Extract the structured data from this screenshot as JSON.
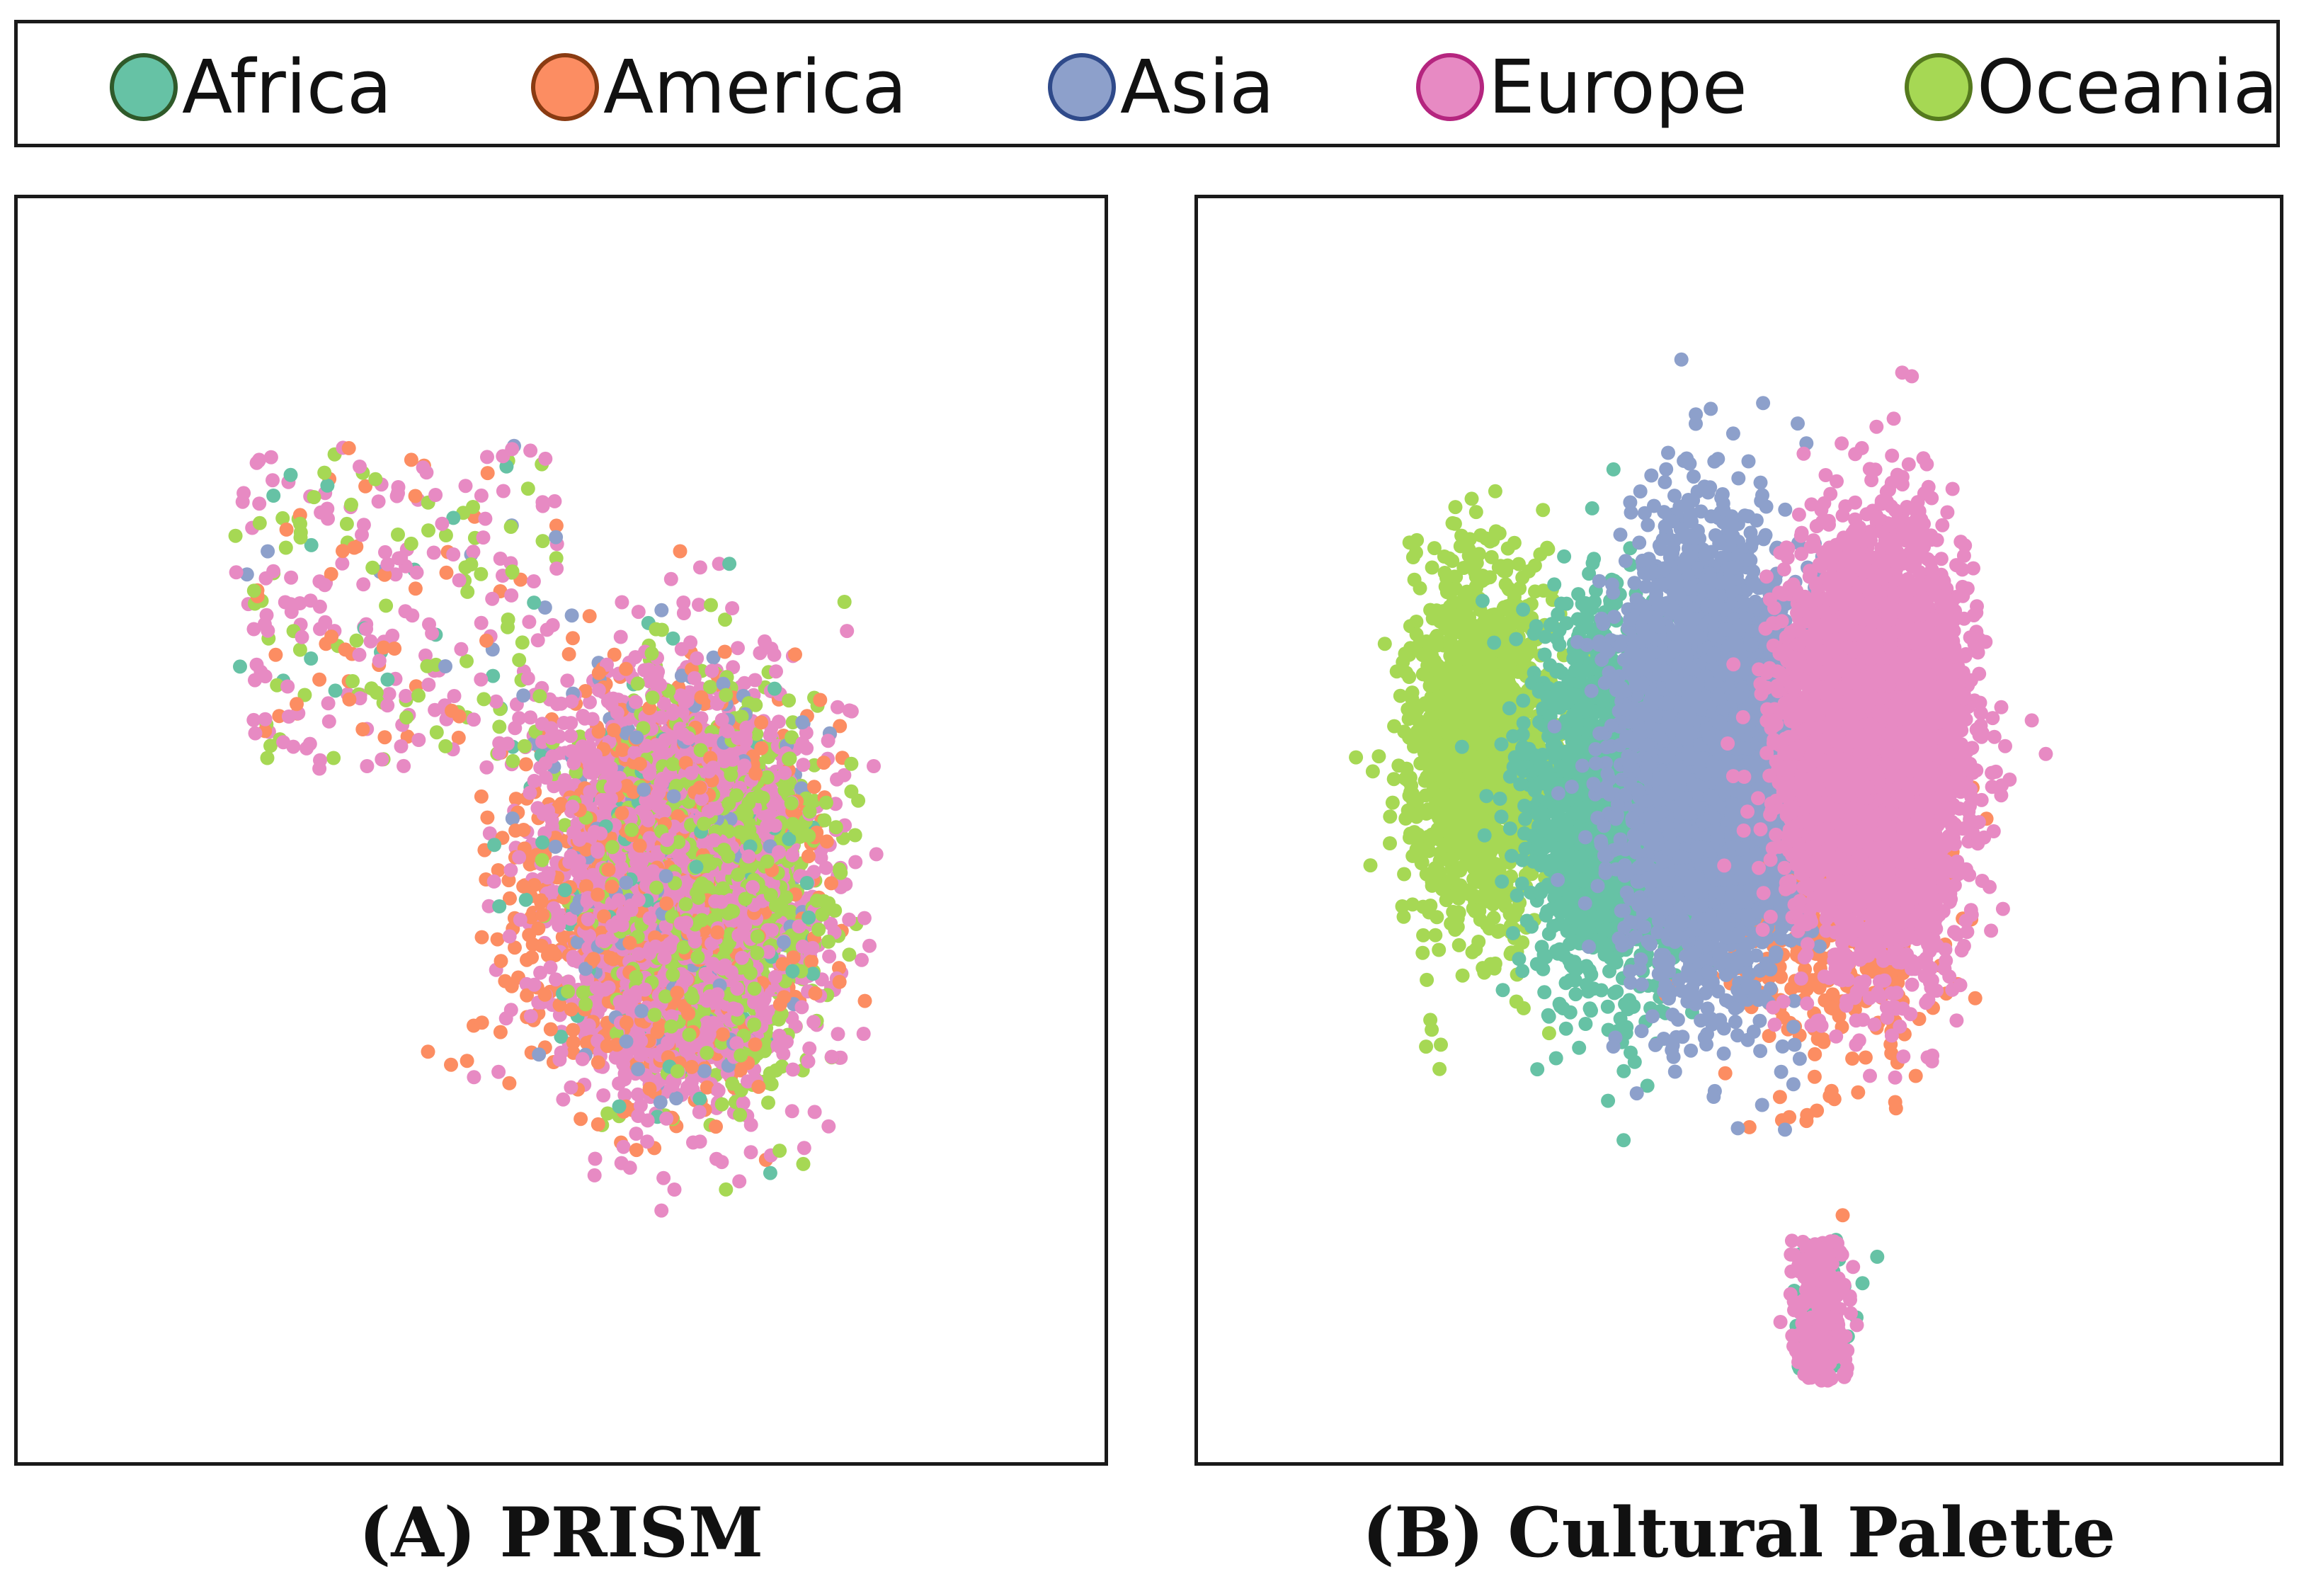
{
  "legend": {
    "items": [
      {
        "name": "Africa",
        "color": "#66c2a5",
        "border": "#2f5a2a"
      },
      {
        "name": "America",
        "color": "#fc8d62",
        "border": "#8a3b12"
      },
      {
        "name": "Asia",
        "color": "#8da0cb",
        "border": "#2f4a8a"
      },
      {
        "name": "Europe",
        "color": "#e78ac3",
        "border": "#b5257f"
      },
      {
        "name": "Oceania",
        "color": "#a6d854",
        "border": "#557a1e"
      }
    ]
  },
  "chart_data": [
    {
      "type": "scatter",
      "panel_caption": "(A) PRISM",
      "title": "",
      "xlabel": "",
      "ylabel": "",
      "grid": false,
      "legend_position": "top",
      "point_counts_note": "",
      "series": [
        {
          "name": "Africa",
          "color": "#66c2a5",
          "cluster": {
            "cx": 0.0,
            "cy": 0.0,
            "sx": 1.1,
            "sy": 1.25
          },
          "sample": 160
        },
        {
          "name": "America",
          "color": "#fc8d62",
          "cluster": {
            "cx": -0.1,
            "cy": 0.05,
            "sx": 1.25,
            "sy": 1.3
          },
          "sample": 900
        },
        {
          "name": "Asia",
          "color": "#8da0cb",
          "cluster": {
            "cx": 0.0,
            "cy": 0.0,
            "sx": 1.1,
            "sy": 1.25
          },
          "sample": 220
        },
        {
          "name": "Europe",
          "color": "#e78ac3",
          "cluster": {
            "cx": 0.1,
            "cy": 0.0,
            "sx": 1.05,
            "sy": 1.25
          },
          "sample": 2600
        },
        {
          "name": "Oceania",
          "color": "#a6d854",
          "cluster": {
            "cx": 0.35,
            "cy": 0.0,
            "sx": 0.85,
            "sy": 1.1
          },
          "sample": 1400
        }
      ]
    },
    {
      "type": "scatter",
      "panel_caption": "(B) Cultural Palette",
      "title": "",
      "xlabel": "",
      "ylabel": "",
      "grid": false,
      "legend_position": "top",
      "series": [
        {
          "name": "Oceania",
          "color": "#a6d854",
          "cluster": {
            "cx": -1.45,
            "cy": -0.2,
            "sx": 0.35,
            "sy": 1.0
          },
          "sample": 1500
        },
        {
          "name": "Africa",
          "color": "#66c2a5",
          "cluster": {
            "cx": -0.75,
            "cy": 0.15,
            "sx": 0.38,
            "sy": 1.0
          },
          "sample": 1700
        },
        {
          "name": "America",
          "color": "#fc8d62",
          "cluster": {
            "cx": 0.5,
            "cy": 0.6,
            "sx": 0.55,
            "sy": 0.9
          },
          "sample": 700
        },
        {
          "name": "Asia",
          "color": "#8da0cb",
          "cluster": {
            "cx": -0.15,
            "cy": -0.15,
            "sx": 0.45,
            "sy": 1.15
          },
          "sample": 3400
        },
        {
          "name": "Europe",
          "color": "#e78ac3",
          "cluster": {
            "cx": 0.75,
            "cy": -0.2,
            "sx": 0.42,
            "sy": 1.05
          },
          "sample": 5200
        }
      ]
    }
  ]
}
